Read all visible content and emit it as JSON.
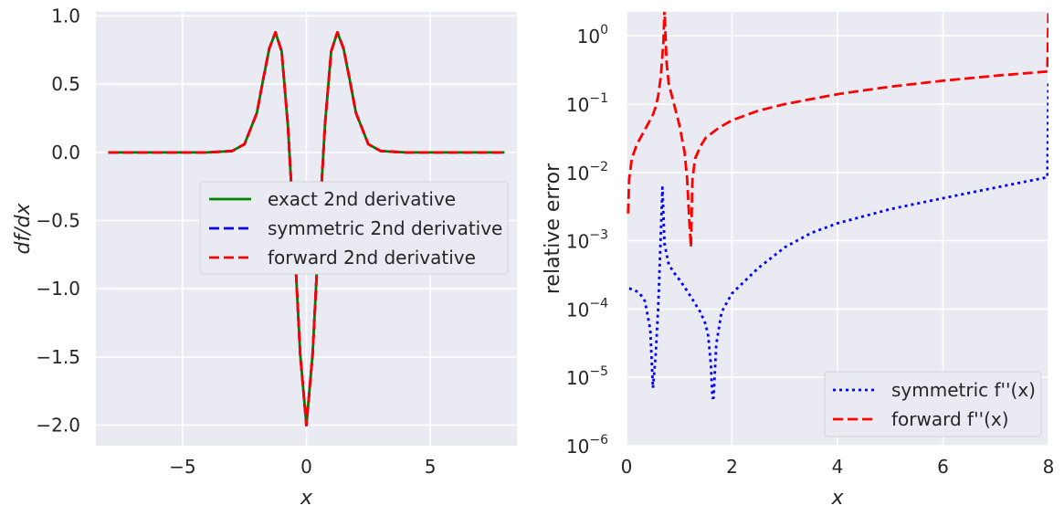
{
  "colors": {
    "background": "#EAEAF2",
    "grid": "#FFFFFF",
    "exact": "#008000",
    "symmetric": "#0000FF",
    "forward": "#FF0000"
  },
  "chart_data": [
    {
      "type": "line",
      "xlabel": "x",
      "ylabel": "df/dx",
      "xlim": [
        -8.5,
        8.5
      ],
      "ylim": [
        -2.15,
        1.03
      ],
      "xticks": [
        {
          "v": -5,
          "t": "−5"
        },
        {
          "v": 0,
          "t": "0"
        },
        {
          "v": 5,
          "t": "5"
        }
      ],
      "yticks": [
        {
          "v": 1.0,
          "t": "1.0"
        },
        {
          "v": 0.5,
          "t": "0.5"
        },
        {
          "v": 0.0,
          "t": "0.0"
        },
        {
          "v": -0.5,
          "t": "−0.5"
        },
        {
          "v": -1.0,
          "t": "−1.0"
        },
        {
          "v": -1.5,
          "t": "−1.5"
        },
        {
          "v": -2.0,
          "t": "−2.0"
        }
      ],
      "grid": true,
      "legend_position": "center-right",
      "series": [
        {
          "name": "exact 2nd derivative",
          "style": "solid",
          "color": "#008000",
          "x": [
            -8,
            -4,
            -3,
            -2.5,
            -2,
            -1.75,
            -1.5,
            -1.25,
            -1,
            -0.75,
            -0.5,
            -0.25,
            0,
            0.25,
            0.5,
            0.75,
            1,
            1.25,
            1.5,
            1.75,
            2,
            2.5,
            3,
            4,
            8
          ],
          "y": [
            0,
            0,
            0.01,
            0.06,
            0.29,
            0.53,
            0.76,
            0.88,
            0.74,
            0.2,
            -0.59,
            -1.48,
            -2.0,
            -1.48,
            -0.59,
            0.2,
            0.74,
            0.88,
            0.76,
            0.53,
            0.29,
            0.06,
            0.01,
            0,
            0
          ]
        },
        {
          "name": "symmetric 2nd derivative",
          "style": "dashed",
          "color": "#0000FF",
          "x": [
            -8,
            -4,
            -3,
            -2.5,
            -2,
            -1.75,
            -1.5,
            -1.25,
            -1,
            -0.75,
            -0.5,
            -0.25,
            0,
            0.25,
            0.5,
            0.75,
            1,
            1.25,
            1.5,
            1.75,
            2,
            2.5,
            3,
            4,
            8
          ],
          "y": [
            0,
            0,
            0.01,
            0.06,
            0.29,
            0.53,
            0.76,
            0.88,
            0.74,
            0.2,
            -0.59,
            -1.48,
            -2.0,
            -1.48,
            -0.59,
            0.2,
            0.74,
            0.88,
            0.76,
            0.53,
            0.29,
            0.06,
            0.01,
            0,
            0
          ]
        },
        {
          "name": "forward 2nd derivative",
          "style": "dashed",
          "color": "#FF0000",
          "x": [
            -8,
            -4,
            -3,
            -2.5,
            -2,
            -1.75,
            -1.5,
            -1.25,
            -1,
            -0.75,
            -0.5,
            -0.25,
            0,
            0.25,
            0.5,
            0.75,
            1,
            1.25,
            1.5,
            1.75,
            2,
            2.5,
            3,
            4,
            8
          ],
          "y": [
            0,
            0,
            0.01,
            0.06,
            0.29,
            0.53,
            0.76,
            0.88,
            0.74,
            0.2,
            -0.59,
            -1.48,
            -2.0,
            -1.48,
            -0.59,
            0.2,
            0.74,
            0.88,
            0.76,
            0.53,
            0.29,
            0.06,
            0.01,
            0,
            0
          ]
        }
      ]
    },
    {
      "type": "line",
      "xlabel": "x",
      "ylabel": "relative error",
      "xlim": [
        0,
        8
      ],
      "ylim_log10": [
        -6,
        0.35
      ],
      "yscale": "log",
      "xticks": [
        {
          "v": 0,
          "t": "0"
        },
        {
          "v": 2,
          "t": "2"
        },
        {
          "v": 4,
          "t": "4"
        },
        {
          "v": 6,
          "t": "6"
        },
        {
          "v": 8,
          "t": "8"
        }
      ],
      "yticks": [
        {
          "exp": 0,
          "base": "10",
          "sup": "0"
        },
        {
          "exp": -1,
          "base": "10",
          "sup": "−1"
        },
        {
          "exp": -2,
          "base": "10",
          "sup": "−2"
        },
        {
          "exp": -3,
          "base": "10",
          "sup": "−3"
        },
        {
          "exp": -4,
          "base": "10",
          "sup": "−4"
        },
        {
          "exp": -5,
          "base": "10",
          "sup": "−5"
        },
        {
          "exp": -6,
          "base": "10",
          "sup": "−6"
        }
      ],
      "grid": true,
      "legend_position": "lower-right",
      "series": [
        {
          "name": "symmetric f''(x)",
          "style": "dotted",
          "color": "#0000FF",
          "x": [
            0.05,
            0.15,
            0.25,
            0.35,
            0.45,
            0.5,
            0.55,
            0.6,
            0.65,
            0.68,
            0.72,
            0.8,
            0.9,
            1.0,
            1.1,
            1.2,
            1.3,
            1.4,
            1.5,
            1.55,
            1.6,
            1.63,
            1.65,
            1.7,
            1.8,
            2.0,
            2.5,
            3.0,
            3.5,
            4.0,
            5.0,
            6.0,
            7.0,
            7.98,
            8.0
          ],
          "y": [
            0.0002,
            0.00019,
            0.00017,
            0.00013,
            5e-05,
            7e-06,
            2e-05,
            0.0001,
            0.0012,
            0.006,
            0.0009,
            0.00045,
            0.00034,
            0.00027,
            0.00021,
            0.00016,
            0.00012,
            9e-05,
            6e-05,
            4e-05,
            1.5e-05,
            5e-06,
            5e-06,
            3e-05,
            9e-05,
            0.00017,
            0.0004,
            0.0008,
            0.0013,
            0.0018,
            0.0029,
            0.0042,
            0.006,
            0.0085,
            0.22
          ]
        },
        {
          "name": "forward f''(x)",
          "style": "dashed",
          "color": "#FF0000",
          "x": [
            0.03,
            0.05,
            0.1,
            0.2,
            0.3,
            0.4,
            0.5,
            0.55,
            0.6,
            0.65,
            0.7,
            0.72,
            0.74,
            0.76,
            0.8,
            0.9,
            1.0,
            1.1,
            1.15,
            1.19,
            1.22,
            1.25,
            1.3,
            1.4,
            1.5,
            1.75,
            2.0,
            2.5,
            3.0,
            4.0,
            5.0,
            6.0,
            7.0,
            7.98,
            8.0
          ],
          "y": [
            0.0025,
            0.008,
            0.016,
            0.026,
            0.036,
            0.05,
            0.07,
            0.09,
            0.13,
            0.25,
            0.8,
            2.5,
            1.0,
            0.4,
            0.2,
            0.1,
            0.05,
            0.02,
            0.008,
            0.002,
            0.0008,
            0.008,
            0.016,
            0.024,
            0.032,
            0.045,
            0.058,
            0.08,
            0.1,
            0.14,
            0.18,
            0.22,
            0.26,
            0.3,
            2.5
          ]
        }
      ]
    }
  ]
}
